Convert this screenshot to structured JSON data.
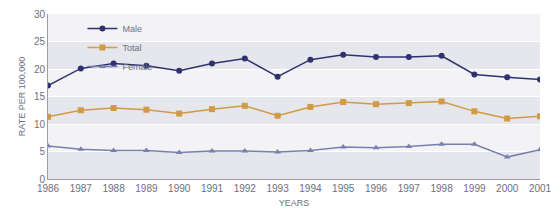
{
  "chart_data": {
    "type": "line",
    "x_label": "YEARS",
    "y_label": "RATE PER 100,000",
    "x": [
      1986,
      1987,
      1988,
      1989,
      1990,
      1991,
      1992,
      1993,
      1994,
      1995,
      1996,
      1997,
      1998,
      1999,
      2000,
      2001
    ],
    "series": [
      {
        "name": "Male",
        "color": "#2e3370",
        "marker": "circle",
        "values": [
          17,
          20.1,
          21,
          20.6,
          19.7,
          21,
          21.9,
          18.6,
          21.7,
          22.6,
          22.2,
          22.2,
          22.4,
          19,
          18.5,
          18.1
        ]
      },
      {
        "name": "Total",
        "color": "#d19a45",
        "marker": "square",
        "values": [
          11.3,
          12.5,
          12.9,
          12.6,
          11.9,
          12.7,
          13.3,
          11.5,
          13.1,
          14,
          13.6,
          13.8,
          14.1,
          12.3,
          11,
          11.4
        ]
      },
      {
        "name": "Female",
        "color": "#7a80ae",
        "marker": "triangle-up",
        "values": [
          6,
          5.4,
          5.2,
          5.2,
          4.8,
          5.1,
          5.1,
          4.9,
          5.2,
          5.8,
          5.7,
          5.9,
          6.3,
          6.3,
          4,
          5.3
        ]
      }
    ],
    "xlim": [
      1986,
      2001
    ],
    "xticks": [
      1986,
      1987,
      1988,
      1989,
      1990,
      1991,
      1992,
      1993,
      1994,
      1995,
      1996,
      1997,
      1998,
      1999,
      2000,
      2001
    ],
    "ylim": [
      0,
      30
    ],
    "yticks": [
      0,
      5,
      10,
      15,
      20,
      25,
      30
    ],
    "grid": true,
    "legend": "top left"
  }
}
